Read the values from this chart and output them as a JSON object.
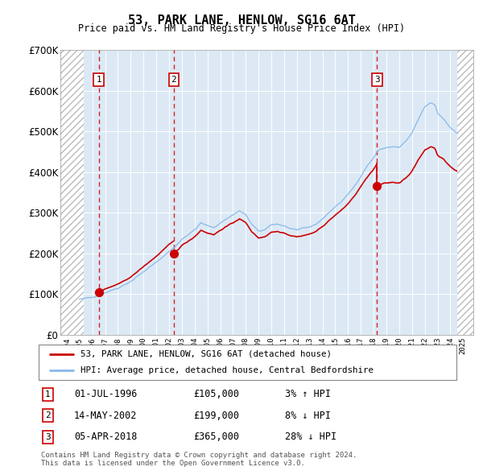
{
  "title": "53, PARK LANE, HENLOW, SG16 6AT",
  "subtitle": "Price paid vs. HM Land Registry's House Price Index (HPI)",
  "legend_line1": "53, PARK LANE, HENLOW, SG16 6AT (detached house)",
  "legend_line2": "HPI: Average price, detached house, Central Bedfordshire",
  "footer1": "Contains HM Land Registry data © Crown copyright and database right 2024.",
  "footer2": "This data is licensed under the Open Government Licence v3.0.",
  "ylim": [
    0,
    700000
  ],
  "yticks": [
    0,
    100000,
    200000,
    300000,
    400000,
    500000,
    600000,
    700000
  ],
  "xlim_start": 1993.5,
  "xlim_end": 2025.8,
  "hatch_left_end": 1995.3,
  "hatch_right_start": 2024.55,
  "sale_dates": [
    1996.5,
    2002.37,
    2018.27
  ],
  "sale_prices": [
    105000,
    199000,
    365000
  ],
  "sale_labels": [
    "1",
    "2",
    "3"
  ],
  "sale_info": [
    {
      "num": "1",
      "date": "01-JUL-1996",
      "price": "£105,000",
      "hpi": "3% ↑ HPI"
    },
    {
      "num": "2",
      "date": "14-MAY-2002",
      "price": "£199,000",
      "hpi": "8% ↓ HPI"
    },
    {
      "num": "3",
      "date": "05-APR-2018",
      "price": "£365,000",
      "hpi": "28% ↓ HPI"
    }
  ],
  "hpi_line_color": "#88b8e8",
  "sale_line_color": "#cc0000",
  "sale_dot_color": "#cc0000",
  "vline_color": "#cc0000",
  "box_edge_color": "#cc0000",
  "plot_bg": "#dce9f5",
  "grid_color": "#ffffff"
}
